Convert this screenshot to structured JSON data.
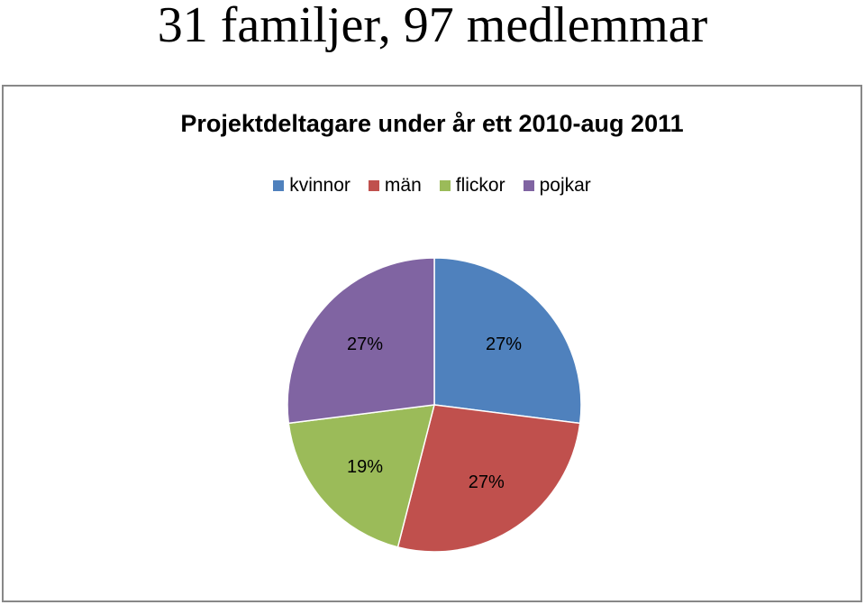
{
  "slide": {
    "title": "31 familjer, 97 medlemmar"
  },
  "chart_data": {
    "type": "pie",
    "title": "Projektdeltagare under år ett 2010-aug 2011",
    "legend_position": "top",
    "categories": [
      "kvinnor",
      "män",
      "flickor",
      "pojkar"
    ],
    "values": [
      27,
      27,
      19,
      27
    ],
    "labels": [
      "27%",
      "27%",
      "19%",
      "27%"
    ],
    "colors": [
      "#4F81BD",
      "#C0504D",
      "#9BBB59",
      "#8064A2"
    ]
  }
}
